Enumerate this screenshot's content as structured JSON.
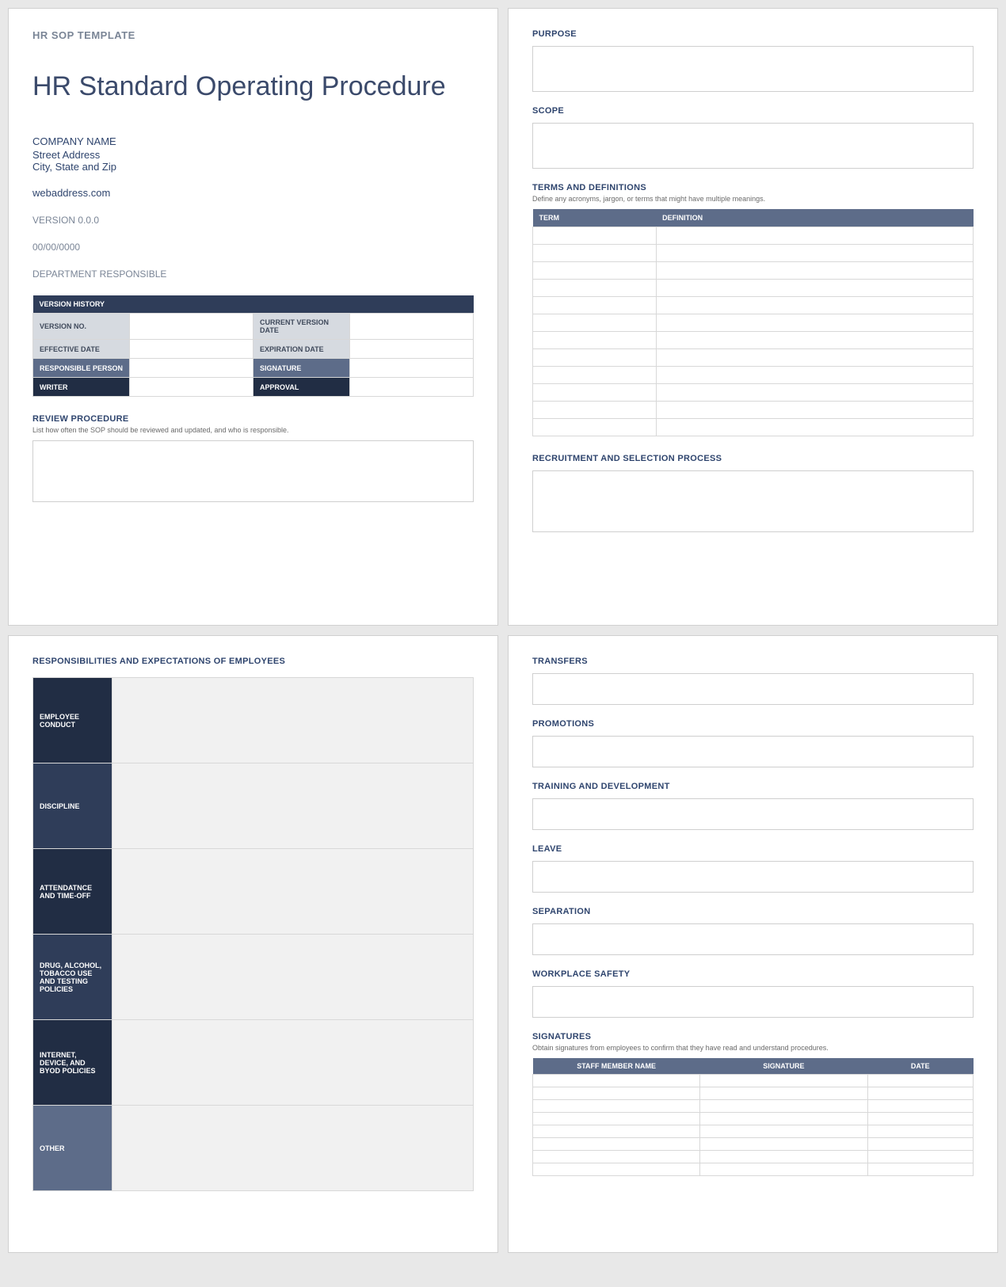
{
  "colors": {
    "page_bg": "#ffffff",
    "body_bg": "#e8e8e8",
    "header_text": "#7a8596",
    "title_text": "#3b4a6b",
    "section_title": "#2f456e",
    "subtitle_text": "#6a6a6a",
    "border": "#cfcfcf",
    "table_border": "#d8d8d8",
    "darkest": "#212d44",
    "dark": "#2f3d59",
    "mid": "#5d6c89",
    "light_label": "#d6dae0",
    "resp_value_bg": "#f1f1f1"
  },
  "page1": {
    "header": "HR SOP TEMPLATE",
    "title": "HR Standard Operating Procedure",
    "company_name": "COMPANY NAME",
    "street": "Street Address",
    "city": "City, State and Zip",
    "web": "webaddress.com",
    "version": "VERSION 0.0.0",
    "date": "00/00/0000",
    "department": "DEPARTMENT RESPONSIBLE",
    "version_history": {
      "header": "VERSION HISTORY",
      "rows": [
        {
          "l1": "VERSION NO.",
          "l2": "CURRENT VERSION DATE",
          "style": "light"
        },
        {
          "l1": "EFFECTIVE DATE",
          "l2": "EXPIRATION DATE",
          "style": "light"
        },
        {
          "l1": "RESPONSIBLE PERSON",
          "l2": "SIGNATURE",
          "style": "mid"
        },
        {
          "l1": "WRITER",
          "l2": "APPROVAL",
          "style": "dark"
        }
      ]
    },
    "review": {
      "title": "REVIEW PROCEDURE",
      "subtitle": "List how often the SOP should be reviewed and updated, and who is responsible."
    }
  },
  "page2": {
    "purpose": "PURPOSE",
    "scope": "SCOPE",
    "terms": {
      "title": "TERMS AND DEFINITIONS",
      "subtitle": "Define any acronyms, jargon, or terms that might have multiple meanings.",
      "col1": "TERM",
      "col2": "DEFINITION",
      "row_count": 12
    },
    "recruitment": "RECRUITMENT AND SELECTION PROCESS"
  },
  "page3": {
    "title": "RESPONSIBILITIES AND EXPECTATIONS OF EMPLOYEES",
    "rows": [
      {
        "label": "EMPLOYEE CONDUCT",
        "bg": "darkest"
      },
      {
        "label": "DISCIPLINE",
        "bg": "dark"
      },
      {
        "label": "ATTENDATNCE AND TIME-OFF",
        "bg": "darkest"
      },
      {
        "label": "DRUG, ALCOHOL, TOBACCO USE AND TESTING POLICIES",
        "bg": "dark"
      },
      {
        "label": "INTERNET, DEVICE, AND BYOD POLICIES",
        "bg": "darkest"
      },
      {
        "label": "OTHER",
        "bg": "mid"
      }
    ]
  },
  "page4": {
    "sections": [
      "TRANSFERS",
      "PROMOTIONS",
      "TRAINING AND DEVELOPMENT",
      "LEAVE",
      "SEPARATION",
      "WORKPLACE SAFETY"
    ],
    "signatures": {
      "title": "SIGNATURES",
      "subtitle": "Obtain signatures from employees to confirm that they have read and understand procedures.",
      "cols": [
        "STAFF MEMBER NAME",
        "SIGNATURE",
        "DATE"
      ],
      "row_count": 8
    }
  }
}
